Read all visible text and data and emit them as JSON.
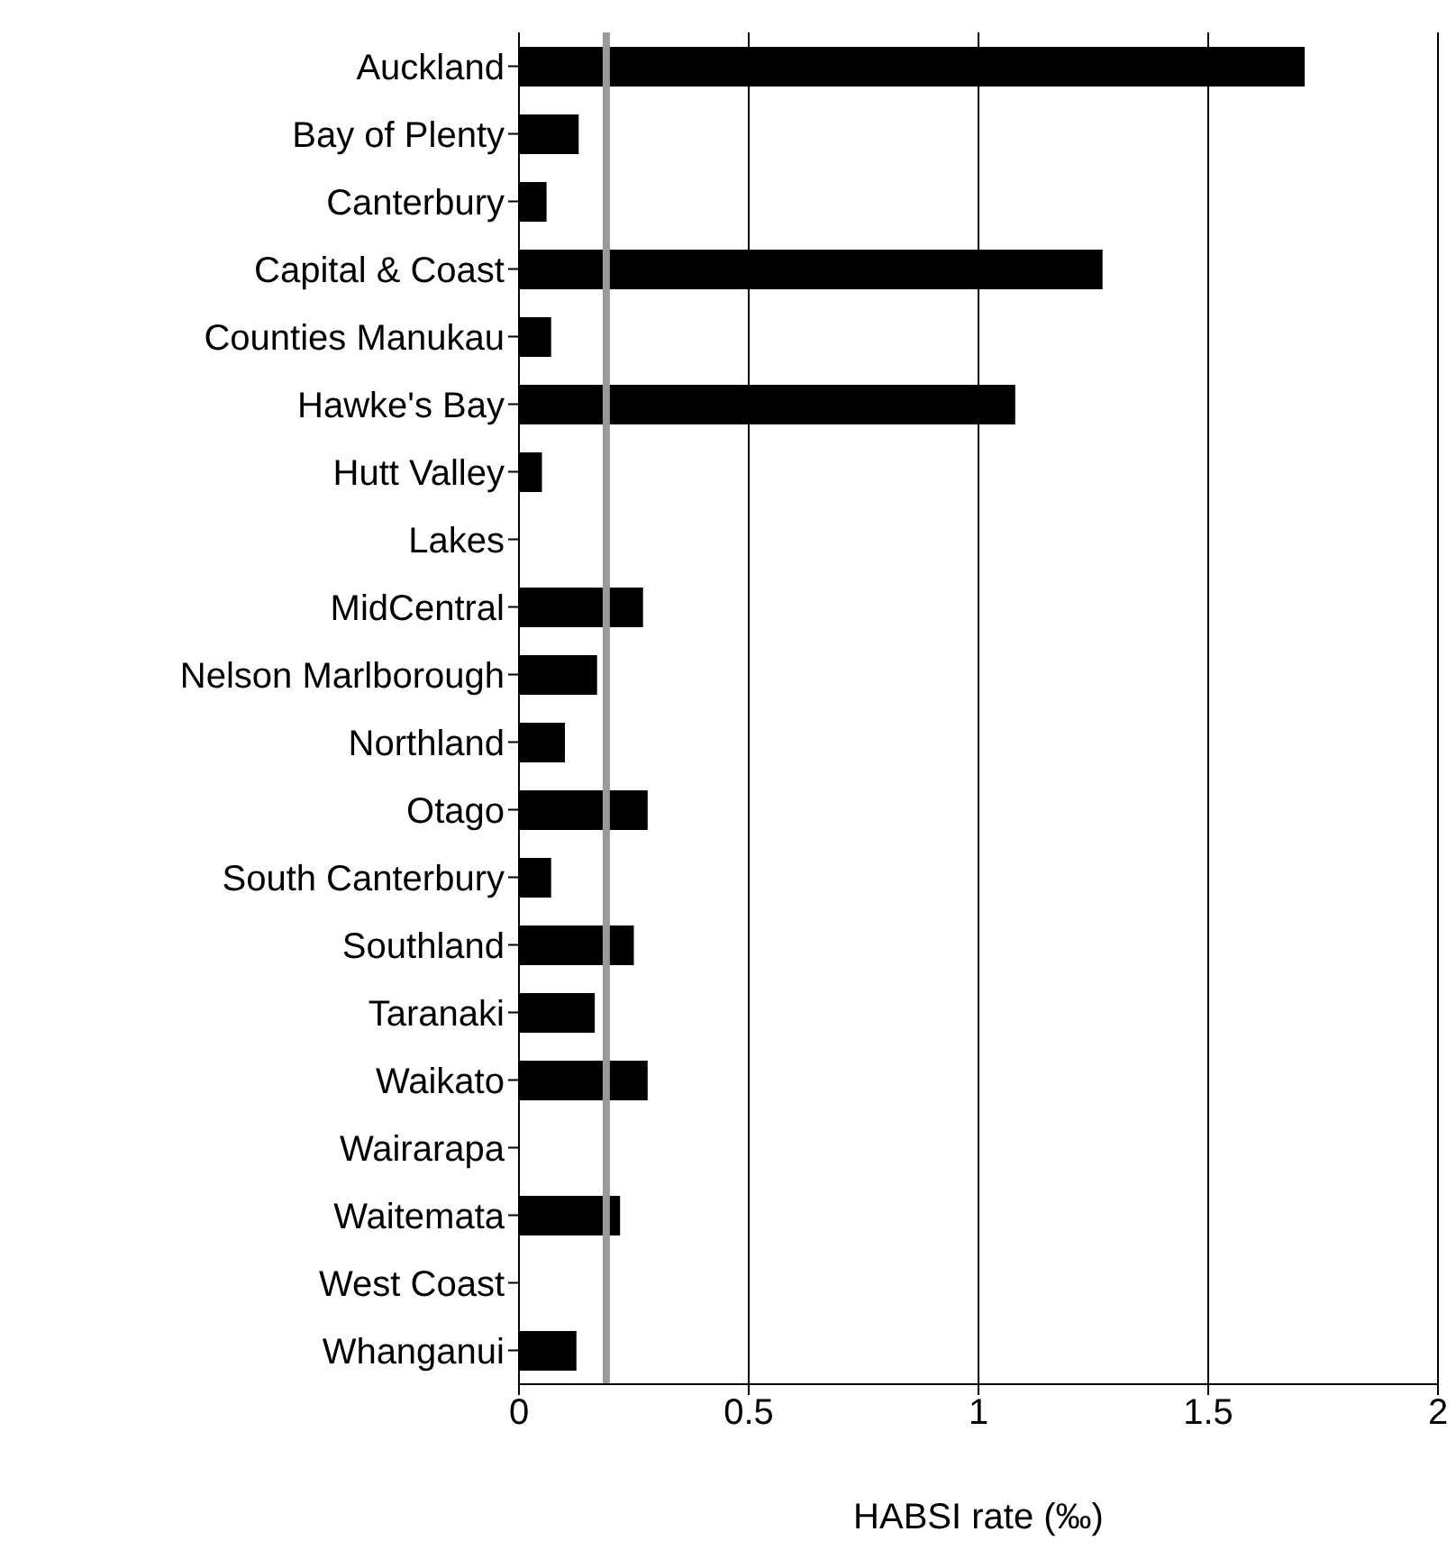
{
  "chart_data": {
    "type": "bar",
    "orientation": "horizontal",
    "xlabel": "HABSI rate (‰)",
    "categories": [
      "Auckland",
      "Bay of Plenty",
      "Canterbury",
      "Capital & Coast",
      "Counties Manukau",
      "Hawke's Bay",
      "Hutt Valley",
      "Lakes",
      "MidCentral",
      "Nelson Marlborough",
      "Northland",
      "Otago",
      "South Canterbury",
      "Southland",
      "Taranaki",
      "Waikato",
      "Wairarapa",
      "Waitemata",
      "West Coast",
      "Whanganui"
    ],
    "values": [
      1.71,
      0.13,
      0.06,
      1.27,
      0.07,
      1.08,
      0.05,
      0,
      0.27,
      0.17,
      0.1,
      0.28,
      0.07,
      0.25,
      0.165,
      0.28,
      0,
      0.22,
      0,
      0.125
    ],
    "color": "#000000",
    "xlim": [
      0,
      2
    ],
    "xticks": [
      0,
      0.5,
      1,
      1.5,
      2
    ],
    "grid": "x",
    "ref_lines": [
      {
        "axis": "x",
        "value": 0.19,
        "color": "#999999"
      }
    ]
  }
}
